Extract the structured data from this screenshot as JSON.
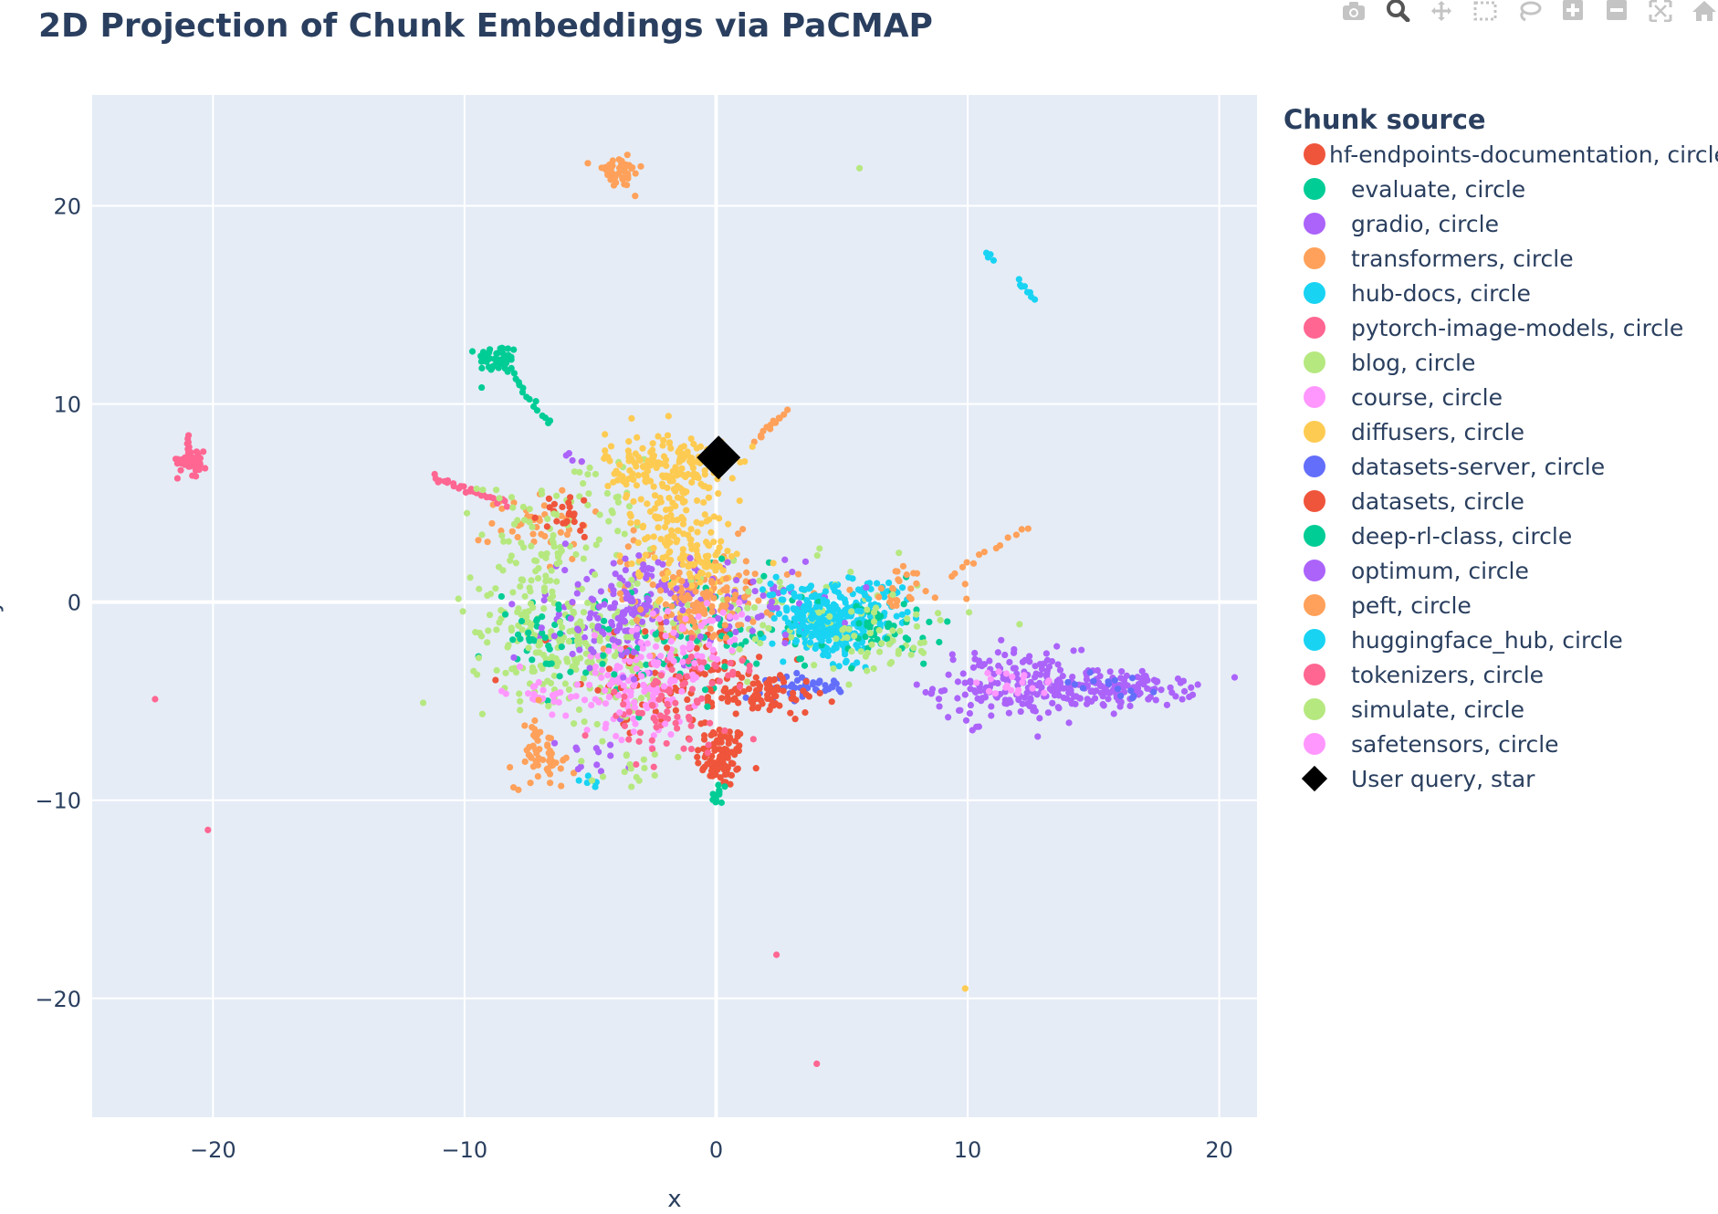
{
  "chart_data": {
    "type": "scatter",
    "title": "2D Projection of Chunk Embeddings via PaCMAP",
    "xlabel": "x",
    "ylabel": "y",
    "xlim": [
      -24.8,
      21.5
    ],
    "ylim": [
      -26,
      25.6
    ],
    "x_ticks": [
      -20,
      -10,
      0,
      10,
      20
    ],
    "x_tick_labels": [
      "−20",
      "−10",
      "0",
      "10",
      "20"
    ],
    "y_ticks": [
      -20,
      -10,
      0,
      10,
      20
    ],
    "y_tick_labels": [
      "−20",
      "−10",
      "0",
      "10",
      "20"
    ],
    "grid": true,
    "legend_title": "Chunk source",
    "legend_position": "right",
    "series": [
      {
        "name": "hf-endpoints-documentation, circle",
        "color": "#EF553B",
        "symbol": "circle",
        "clusters": [
          {
            "cx": 0.2,
            "cy": -7.8,
            "sx": 0.5,
            "sy": 0.8,
            "n": 90
          },
          {
            "cx": -1.5,
            "cy": -4.5,
            "sx": 1.8,
            "sy": 1.2,
            "n": 60
          }
        ]
      },
      {
        "name": "evaluate, circle",
        "color": "#00CC96",
        "symbol": "circle",
        "clusters": [
          {
            "cx": -8.7,
            "cy": 12.3,
            "sx": 0.4,
            "sy": 0.35,
            "n": 45
          },
          {
            "cx": 0.1,
            "cy": -9.8,
            "sx": 0.15,
            "sy": 0.4,
            "n": 12
          },
          {
            "cx": -2,
            "cy": -1.5,
            "sx": 3,
            "sy": 1.5,
            "n": 60
          }
        ],
        "lines": [
          {
            "x0": -8.5,
            "y0": 12.0,
            "x1": -6.5,
            "y1": 9.0,
            "n": 18
          }
        ]
      },
      {
        "name": "gradio, circle",
        "color": "#AB63FA",
        "symbol": "circle",
        "clusters": [
          {
            "cx": 11.5,
            "cy": -4.2,
            "sx": 1.4,
            "sy": 0.9,
            "n": 160
          },
          {
            "cx": 15.8,
            "cy": -4.4,
            "sx": 1.6,
            "sy": 0.45,
            "n": 150
          },
          {
            "cx": -3,
            "cy": -0.5,
            "sx": 1.6,
            "sy": 1.4,
            "n": 90
          }
        ]
      },
      {
        "name": "transformers, circle",
        "color": "#FFA15A",
        "symbol": "circle",
        "clusters": [
          {
            "cx": -3.9,
            "cy": 21.7,
            "sx": 0.5,
            "sy": 0.4,
            "n": 45
          },
          {
            "cx": -6.8,
            "cy": -8.0,
            "sx": 0.6,
            "sy": 0.7,
            "n": 35
          },
          {
            "cx": -1,
            "cy": 0.5,
            "sx": 2.2,
            "sy": 1.3,
            "n": 90
          },
          {
            "cx": -7,
            "cy": 4,
            "sx": 1.0,
            "sy": 0.9,
            "n": 40
          }
        ],
        "lines": [
          {
            "x0": 1.5,
            "y0": 8.2,
            "x1": 2.8,
            "y1": 9.6,
            "n": 14
          },
          {
            "x0": 9.5,
            "y0": 1.5,
            "x1": 12.4,
            "y1": 3.8,
            "n": 12
          }
        ]
      },
      {
        "name": "hub-docs, circle",
        "color": "#19D3F3",
        "symbol": "circle",
        "clusters": [
          {
            "cx": 4.5,
            "cy": -1.6,
            "sx": 1.0,
            "sy": 0.9,
            "n": 120
          },
          {
            "cx": 6.0,
            "cy": -0.2,
            "sx": 1.2,
            "sy": 0.7,
            "n": 90
          }
        ],
        "lines": [
          {
            "x0": 10.7,
            "y0": 17.6,
            "x1": 11.0,
            "y1": 17.3,
            "n": 5
          },
          {
            "x0": 12.0,
            "y0": 16.2,
            "x1": 12.6,
            "y1": 15.4,
            "n": 8
          }
        ]
      },
      {
        "name": "pytorch-image-models, circle",
        "color": "#FF6692",
        "symbol": "circle",
        "clusters": [
          {
            "cx": -20.8,
            "cy": 7.2,
            "sx": 0.3,
            "sy": 0.4,
            "n": 40
          }
        ],
        "lines": [
          {
            "x0": -11.3,
            "y0": 6.3,
            "x1": -8.3,
            "y1": 5.0,
            "n": 28
          },
          {
            "x0": -21.0,
            "y0": 8.5,
            "x1": -21.0,
            "y1": 7.2,
            "n": 6
          }
        ]
      },
      {
        "name": "blog, circle",
        "color": "#B6E880",
        "symbol": "circle",
        "clusters": [
          {
            "cx": -6.5,
            "cy": -1.5,
            "sx": 1.6,
            "sy": 1.7,
            "n": 180
          },
          {
            "cx": -4,
            "cy": -3.5,
            "sx": 1.2,
            "sy": 1.5,
            "n": 80
          },
          {
            "cx": 2,
            "cy": -1,
            "sx": 3.5,
            "sy": 1.4,
            "n": 100
          },
          {
            "cx": -5,
            "cy": 4.5,
            "sx": 1.3,
            "sy": 1.5,
            "n": 50
          }
        ],
        "points": [
          [
            5.7,
            21.9
          ]
        ]
      },
      {
        "name": "course, circle",
        "color": "#FF97FF",
        "symbol": "circle",
        "clusters": [
          {
            "cx": -3.2,
            "cy": -4.4,
            "sx": 1.1,
            "sy": 1.2,
            "n": 90
          },
          {
            "cx": -7,
            "cy": -4.5,
            "sx": 0.7,
            "sy": 0.5,
            "n": 25
          },
          {
            "cx": 12,
            "cy": -4.2,
            "sx": 0.8,
            "sy": 0.4,
            "n": 20
          }
        ]
      },
      {
        "name": "diffusers, circle",
        "color": "#FECB52",
        "symbol": "circle",
        "clusters": [
          {
            "cx": -2.0,
            "cy": 6.8,
            "sx": 1.2,
            "sy": 0.9,
            "n": 180
          },
          {
            "cx": -1.5,
            "cy": 3.5,
            "sx": 1.0,
            "sy": 1.4,
            "n": 120
          },
          {
            "cx": -0.5,
            "cy": 1.5,
            "sx": 1.0,
            "sy": 0.8,
            "n": 40
          }
        ],
        "points": [
          [
            9.9,
            -19.5
          ]
        ]
      },
      {
        "name": "datasets-server, circle",
        "color": "#636EFA",
        "symbol": "circle",
        "clusters": [
          {
            "cx": 3.6,
            "cy": -4.3,
            "sx": 0.9,
            "sy": 0.3,
            "n": 45
          },
          {
            "cx": 15.5,
            "cy": -4.2,
            "sx": 1.0,
            "sy": 0.3,
            "n": 15
          }
        ]
      },
      {
        "name": "datasets, circle",
        "color": "#EF553B",
        "symbol": "circle",
        "clusters": [
          {
            "cx": 2.0,
            "cy": -4.6,
            "sx": 1.0,
            "sy": 0.5,
            "n": 80
          },
          {
            "cx": -6.0,
            "cy": 4.4,
            "sx": 0.7,
            "sy": 0.6,
            "n": 25
          },
          {
            "cx": -1,
            "cy": -2.5,
            "sx": 1.8,
            "sy": 1.2,
            "n": 40
          }
        ]
      },
      {
        "name": "deep-rl-class, circle",
        "color": "#00CC96",
        "symbol": "circle",
        "clusters": [
          {
            "cx": -1.5,
            "cy": -2.0,
            "sx": 2.5,
            "sy": 1.5,
            "n": 50
          },
          {
            "cx": 6.5,
            "cy": -1.5,
            "sx": 1.6,
            "sy": 1.0,
            "n": 45
          },
          {
            "cx": -6.8,
            "cy": -1.8,
            "sx": 0.9,
            "sy": 1.0,
            "n": 30
          }
        ]
      },
      {
        "name": "optimum, circle",
        "color": "#AB63FA",
        "symbol": "circle",
        "clusters": [
          {
            "cx": -3.8,
            "cy": -0.4,
            "sx": 1.4,
            "sy": 1.4,
            "n": 90
          },
          {
            "cx": 1.5,
            "cy": 0.0,
            "sx": 2.0,
            "sy": 1.0,
            "n": 50
          },
          {
            "cx": -5,
            "cy": -8.0,
            "sx": 0.7,
            "sy": 0.5,
            "n": 12
          }
        ],
        "lines": [
          {
            "x0": -6.0,
            "y0": 7.6,
            "x1": -5.5,
            "y1": 7.0,
            "n": 4
          }
        ]
      },
      {
        "name": "peft, circle",
        "color": "#FFA15A",
        "symbol": "circle",
        "clusters": [
          {
            "cx": -0.5,
            "cy": -0.2,
            "sx": 1.2,
            "sy": 0.8,
            "n": 70
          },
          {
            "cx": -7.2,
            "cy": -7.5,
            "sx": 0.5,
            "sy": 1.0,
            "n": 25
          },
          {
            "cx": 7.5,
            "cy": 0.6,
            "sx": 1.0,
            "sy": 0.6,
            "n": 30
          }
        ]
      },
      {
        "name": "huggingface_hub, circle",
        "color": "#19D3F3",
        "symbol": "circle",
        "clusters": [
          {
            "cx": 4.2,
            "cy": -1.0,
            "sx": 0.9,
            "sy": 0.6,
            "n": 70
          },
          {
            "cx": 3.2,
            "cy": 0.4,
            "sx": 0.7,
            "sy": 0.4,
            "n": 30
          },
          {
            "cx": -4.8,
            "cy": -9.0,
            "sx": 0.3,
            "sy": 0.2,
            "n": 6
          }
        ]
      },
      {
        "name": "tokenizers, circle",
        "color": "#FF6692",
        "symbol": "circle",
        "clusters": [
          {
            "cx": -2.2,
            "cy": -5.8,
            "sx": 1.2,
            "sy": 0.9,
            "n": 60
          },
          {
            "cx": -0.5,
            "cy": -3.5,
            "sx": 1.2,
            "sy": 1.0,
            "n": 30
          }
        ],
        "points": [
          [
            -22.3,
            -4.9
          ],
          [
            -20.2,
            -11.5
          ],
          [
            2.4,
            -17.8
          ],
          [
            4.0,
            -23.3
          ]
        ]
      },
      {
        "name": "simulate, circle",
        "color": "#B6E880",
        "symbol": "circle",
        "clusters": [
          {
            "cx": -7.5,
            "cy": 2.5,
            "sx": 0.8,
            "sy": 1.2,
            "n": 40
          },
          {
            "cx": 6.5,
            "cy": -2.0,
            "sx": 1.4,
            "sy": 0.8,
            "n": 40
          },
          {
            "cx": -3.5,
            "cy": -8.5,
            "sx": 0.7,
            "sy": 0.5,
            "n": 15
          }
        ],
        "lines": [
          {
            "x0": -9.5,
            "y0": 5.8,
            "x1": -8.2,
            "y1": 5.3,
            "n": 5
          }
        ]
      },
      {
        "name": "safetensors, circle",
        "color": "#FF97FF",
        "symbol": "circle",
        "clusters": [
          {
            "cx": -2.5,
            "cy": -3.0,
            "sx": 1.3,
            "sy": 1.2,
            "n": 50
          },
          {
            "cx": 0.0,
            "cy": -1.5,
            "sx": 1.0,
            "sy": 0.8,
            "n": 25
          }
        ]
      },
      {
        "name": "User query, star",
        "color": "#000000",
        "symbol": "diamond",
        "points": [
          [
            0.1,
            7.3
          ]
        ]
      }
    ]
  }
}
